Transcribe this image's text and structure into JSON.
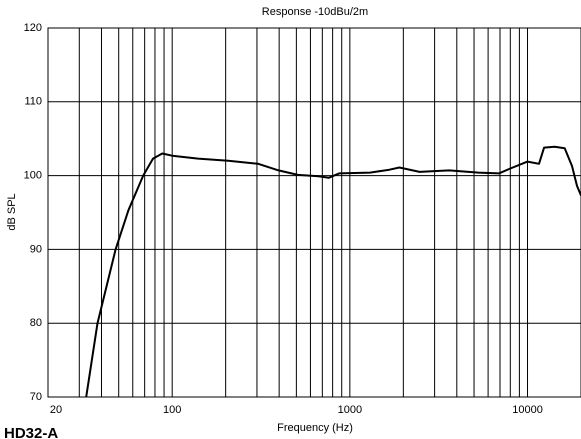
{
  "chart_data": {
    "type": "line",
    "title": "Response -10dBu/2m",
    "xlabel": "Frequency (Hz)",
    "ylabel": "dB SPL",
    "caption": "HD32-A",
    "xscale": "log",
    "grid": true,
    "color": "#000000",
    "xlim": [
      20,
      20000
    ],
    "ylim": [
      70,
      120
    ],
    "xticks": [
      20,
      100,
      1000,
      10000
    ],
    "xgrid": [
      30,
      40,
      50,
      60,
      70,
      80,
      90,
      200,
      300,
      400,
      500,
      600,
      700,
      800,
      900,
      2000,
      3000,
      4000,
      5000,
      6000,
      7000,
      8000,
      9000
    ],
    "yticks": [
      70,
      80,
      90,
      100,
      110,
      120
    ],
    "x": [
      32.8,
      38,
      48,
      56.7,
      68.7,
      78,
      88,
      100,
      140,
      207,
      305,
      397,
      510,
      667,
      760,
      870,
      1300,
      1670,
      1900,
      2470,
      3620,
      5300,
      6900,
      7880,
      10000,
      11600,
      12400,
      14200,
      16200,
      17800,
      19000,
      20000
    ],
    "values": [
      70,
      80,
      90,
      95.3,
      100,
      102.3,
      103,
      102.7,
      102.3,
      102,
      101.6,
      100.7,
      100.1,
      99.9,
      99.7,
      100.3,
      100.4,
      100.8,
      101.1,
      100.5,
      100.7,
      100.4,
      100.3,
      100.9,
      101.9,
      101.6,
      103.8,
      103.9,
      103.7,
      101.3,
      98.6,
      97.3
    ]
  }
}
